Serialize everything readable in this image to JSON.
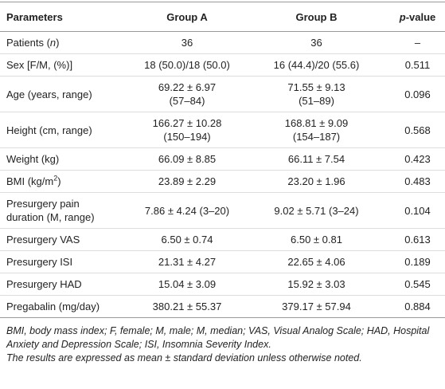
{
  "table": {
    "header": [
      "Parameters",
      "Group A",
      "Group B",
      [
        {
          "text": "p",
          "italic": true
        },
        {
          "text": "-value"
        }
      ]
    ],
    "rows": [
      [
        [
          [
            {
              "text": "Patients ("
            },
            {
              "text": "n",
              "italic": true
            },
            {
              "text": ")"
            }
          ]
        ],
        "36",
        "36",
        "–"
      ],
      [
        "Sex [F/M, (%)]",
        "18 (50.0)/18 (50.0)",
        "16 (44.4)/20 (55.6)",
        "0.511"
      ],
      [
        "Age (years, range)",
        [
          "69.22 ± 6.97",
          "(57–84)"
        ],
        [
          "71.55 ± 9.13",
          "(51–89)"
        ],
        "0.096"
      ],
      [
        "Height (cm, range)",
        [
          "166.27 ± 10.28",
          "(150–194)"
        ],
        [
          "168.81 ± 9.09",
          "(154–187)"
        ],
        "0.568"
      ],
      [
        "Weight (kg)",
        "66.09 ± 8.85",
        "66.11 ± 7.54",
        "0.423"
      ],
      [
        [
          [
            {
              "text": "BMI (kg/m"
            },
            {
              "text": "2",
              "sup": true
            },
            {
              "text": ")"
            }
          ]
        ],
        "23.89 ± 2.29",
        "23.20 ± 1.96",
        "0.483"
      ],
      [
        [
          "Presurgery pain",
          "duration (M, range)"
        ],
        "7.86 ± 4.24 (3–20)",
        "9.02 ± 5.71 (3–24)",
        "0.104"
      ],
      [
        "Presurgery VAS",
        "6.50 ± 0.74",
        "6.50 ± 0.81",
        "0.613"
      ],
      [
        "Presurgery ISI",
        "21.31 ± 4.27",
        "22.65 ± 4.06",
        "0.189"
      ],
      [
        "Presurgery HAD",
        "15.04 ± 3.09",
        "15.92 ± 3.03",
        "0.545"
      ],
      [
        "Pregabalin (mg/day)",
        "380.21 ± 55.37",
        "379.17 ± 57.94",
        "0.884"
      ]
    ],
    "notes": [
      "BMI, body mass index; F, female; M, male; M, median; VAS, Visual Analog Scale; HAD, Hospital Anxiety and Depression Scale; ISI, Insomnia Severity Index.",
      "The results are expressed as mean ± standard deviation unless otherwise noted."
    ]
  }
}
